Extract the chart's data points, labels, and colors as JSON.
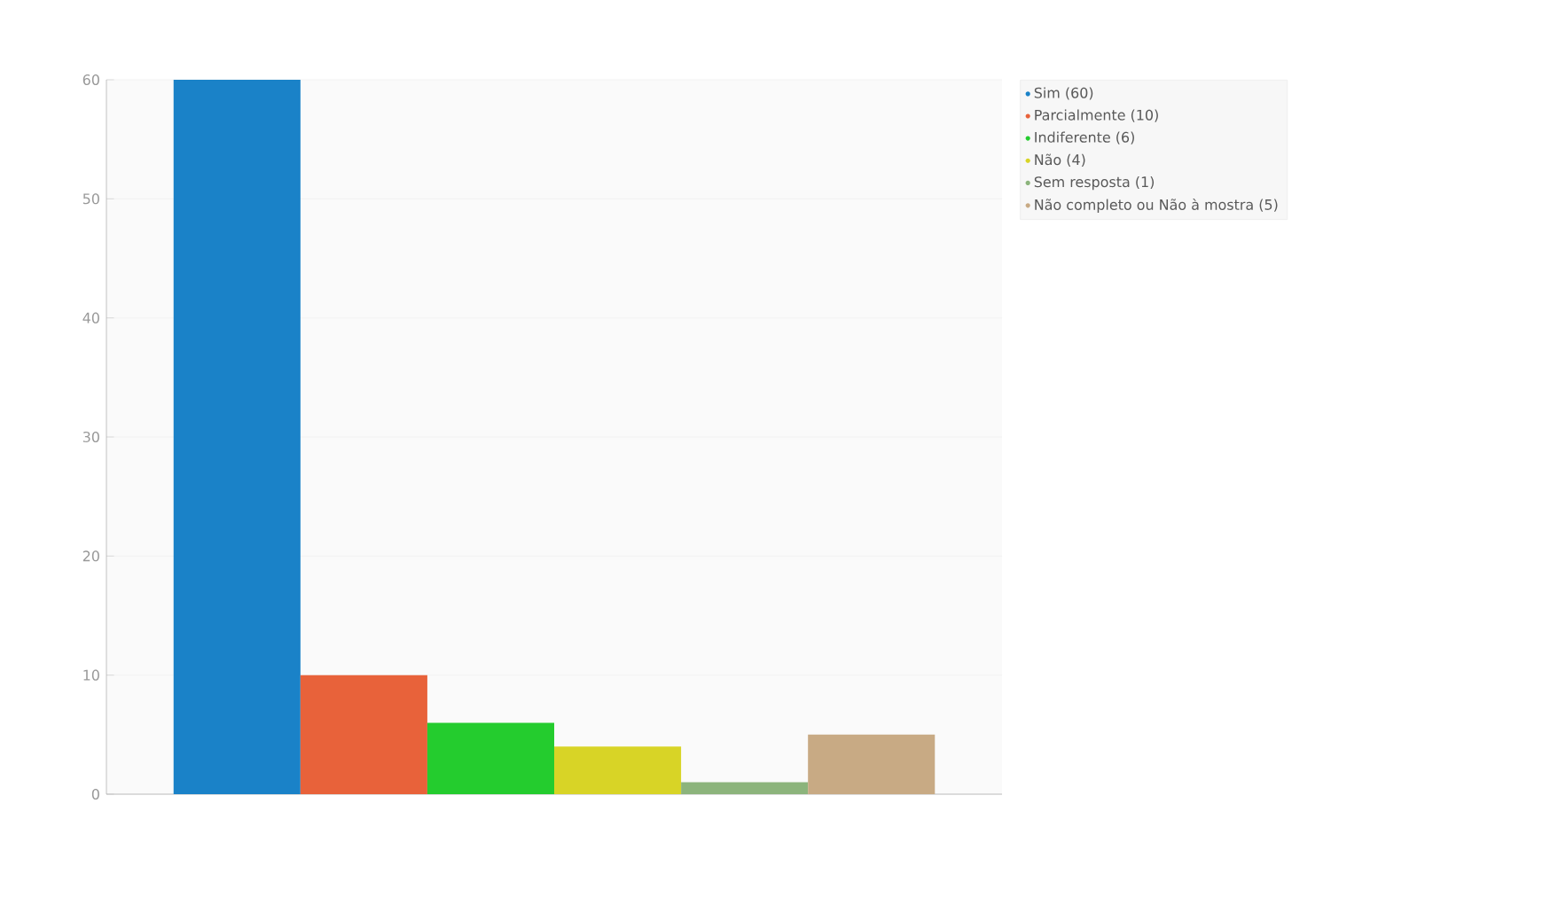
{
  "chart_data": {
    "type": "bar",
    "categories": [
      null
    ],
    "series": [
      {
        "name": "Sim (60)",
        "color": "#1a82c8",
        "values": [
          60
        ]
      },
      {
        "name": "Parcialmente (10)",
        "color": "#e8623a",
        "values": [
          10
        ]
      },
      {
        "name": "Indiferente (6)",
        "color": "#24cc2e",
        "values": [
          6
        ]
      },
      {
        "name": "Não (4)",
        "color": "#d8d426",
        "values": [
          4
        ]
      },
      {
        "name": "Sem resposta (1)",
        "color": "#8cb47c",
        "values": [
          1
        ]
      },
      {
        "name": "Não completo ou Não à mostra (5)",
        "color": "#c8aa84",
        "values": [
          5
        ]
      }
    ],
    "ylim": [
      0,
      60
    ],
    "yticks": [
      0,
      10,
      20,
      30,
      40,
      50,
      60
    ],
    "grid": "y",
    "legend": "top right"
  }
}
